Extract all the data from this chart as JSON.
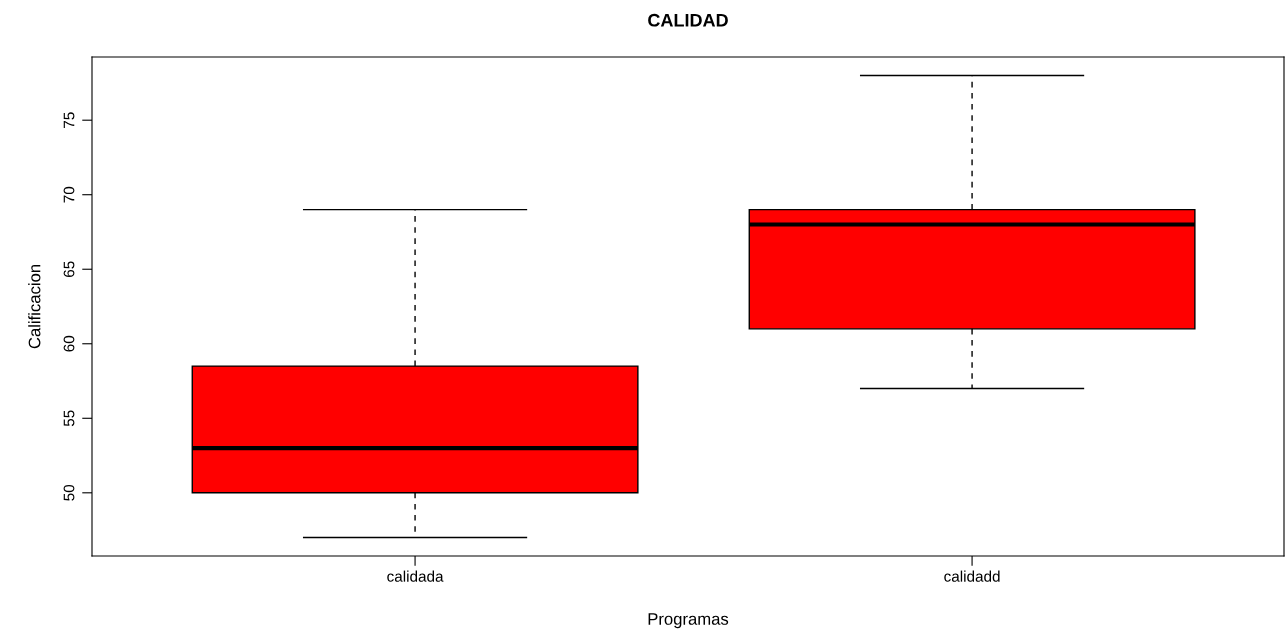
{
  "chart_data": {
    "type": "box",
    "title": "CALIDAD",
    "xlabel": "Programas",
    "ylabel": "Calificacion",
    "categories": [
      "calidada",
      "calidadd"
    ],
    "color": "#ff0000",
    "boxes": [
      {
        "low": 47,
        "q1": 50,
        "median": 53,
        "q3": 58.5,
        "high": 69
      },
      {
        "low": 57,
        "q1": 61,
        "median": 68,
        "q3": 69,
        "high": 78
      }
    ],
    "ylim": [
      45.76,
      79.24
    ],
    "yticks": [
      50,
      55,
      60,
      65,
      70,
      75
    ],
    "grid": false,
    "legend": false
  }
}
